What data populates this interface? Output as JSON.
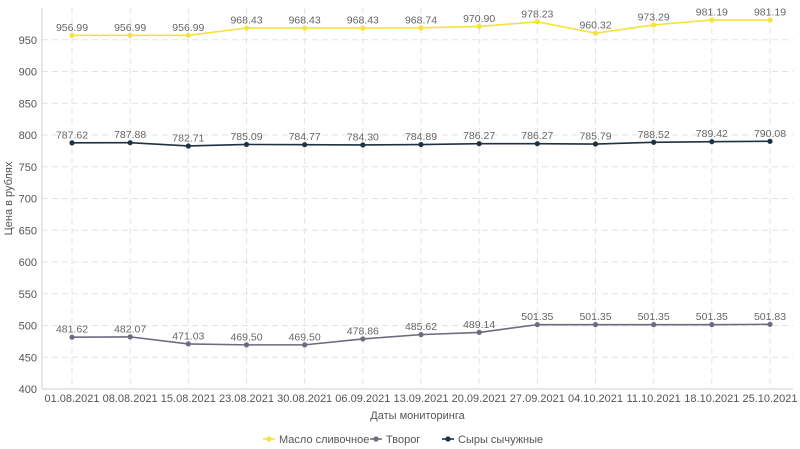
{
  "chart_data": {
    "type": "line",
    "xlabel": "Даты мониторинга",
    "ylabel": "Цена в рублях",
    "ylim": [
      400,
      1000
    ],
    "yticks": [
      400,
      450,
      500,
      550,
      600,
      650,
      700,
      750,
      800,
      850,
      900,
      950
    ],
    "grid": true,
    "legend_position": "bottom-center",
    "categories": [
      "01.08.2021",
      "08.08.2021",
      "15.08.2021",
      "23.08.2021",
      "30.08.2021",
      "06.09.2021",
      "13.09.2021",
      "20.09.2021",
      "27.09.2021",
      "04.10.2021",
      "11.10.2021",
      "18.10.2021",
      "25.10.2021"
    ],
    "series": [
      {
        "name": "Масло сливочное",
        "color": "#f5e23c",
        "values": [
          956.99,
          956.99,
          956.99,
          968.43,
          968.43,
          968.43,
          968.74,
          970.9,
          978.23,
          960.32,
          973.29,
          981.19,
          981.19
        ],
        "labels": [
          "956.99",
          "956.99",
          "956.99",
          "968.43",
          "968.43",
          "968.43",
          "968.74",
          "970.90",
          "978.23",
          "960.32",
          "973.29",
          "981.19",
          "981.19"
        ]
      },
      {
        "name": "Творог",
        "color": "#6e6a80",
        "values": [
          481.62,
          482.07,
          471.03,
          469.5,
          469.5,
          478.86,
          485.62,
          489.14,
          501.35,
          501.35,
          501.35,
          501.35,
          501.83
        ],
        "labels": [
          "481.62",
          "482.07",
          "471.03",
          "469.50",
          "469.50",
          "478.86",
          "485.62",
          "489.14",
          "501.35",
          "501.35",
          "501.35",
          "501.35",
          "501.83"
        ]
      },
      {
        "name": "Сыры сычужные",
        "color": "#1f3240",
        "values": [
          787.62,
          787.88,
          782.71,
          785.09,
          784.77,
          784.3,
          784.89,
          786.27,
          786.27,
          785.79,
          788.52,
          789.42,
          790.08
        ],
        "labels": [
          "787.62",
          "787.88",
          "782.71",
          "785.09",
          "784.77",
          "784.30",
          "784.89",
          "786.27",
          "786.27",
          "785.79",
          "788.52",
          "789.42",
          "790.08"
        ]
      }
    ]
  }
}
